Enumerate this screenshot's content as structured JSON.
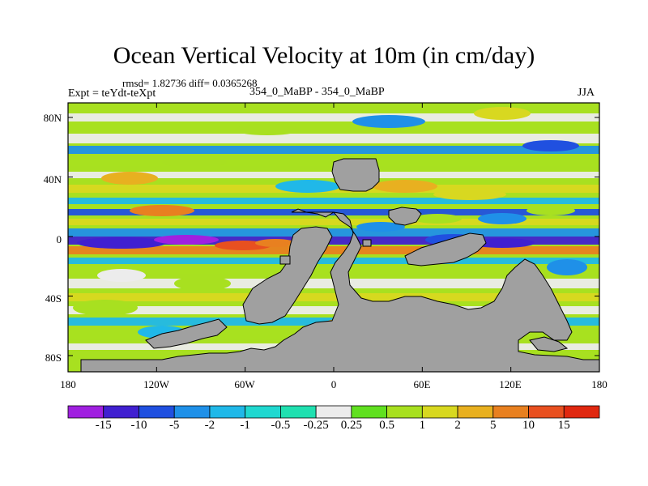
{
  "title": "Ocean Vertical Velocity at 10m (in cm/day)",
  "stats": "rmsd= 1.82736 diff= 0.0365268",
  "experiment": "Expt = teYdt-teXpt",
  "case": "354_0_MaBP - 354_0_MaBP",
  "season": "JJA",
  "lat_labels": [
    "80N",
    "40N",
    "0",
    "40S",
    "80S"
  ],
  "lon_labels": [
    "180",
    "120W",
    "60W",
    "0",
    "60E",
    "120E",
    "180"
  ],
  "colorbar": {
    "labels": [
      "-15",
      "-10",
      "-5",
      "-2",
      "-1",
      "-0.5",
      "-0.25",
      "0.25",
      "0.5",
      "1",
      "2",
      "5",
      "10",
      "15"
    ],
    "colors": [
      "#a020e0",
      "#4020d0",
      "#2050e0",
      "#1f90e8",
      "#20b8e8",
      "#20d8d0",
      "#20e0b0",
      "#ececec",
      "#60e020",
      "#a8e020",
      "#d8d820",
      "#e8b020",
      "#e88020",
      "#e85020",
      "#e02810"
    ],
    "land_color": "#a0a0a0"
  }
}
